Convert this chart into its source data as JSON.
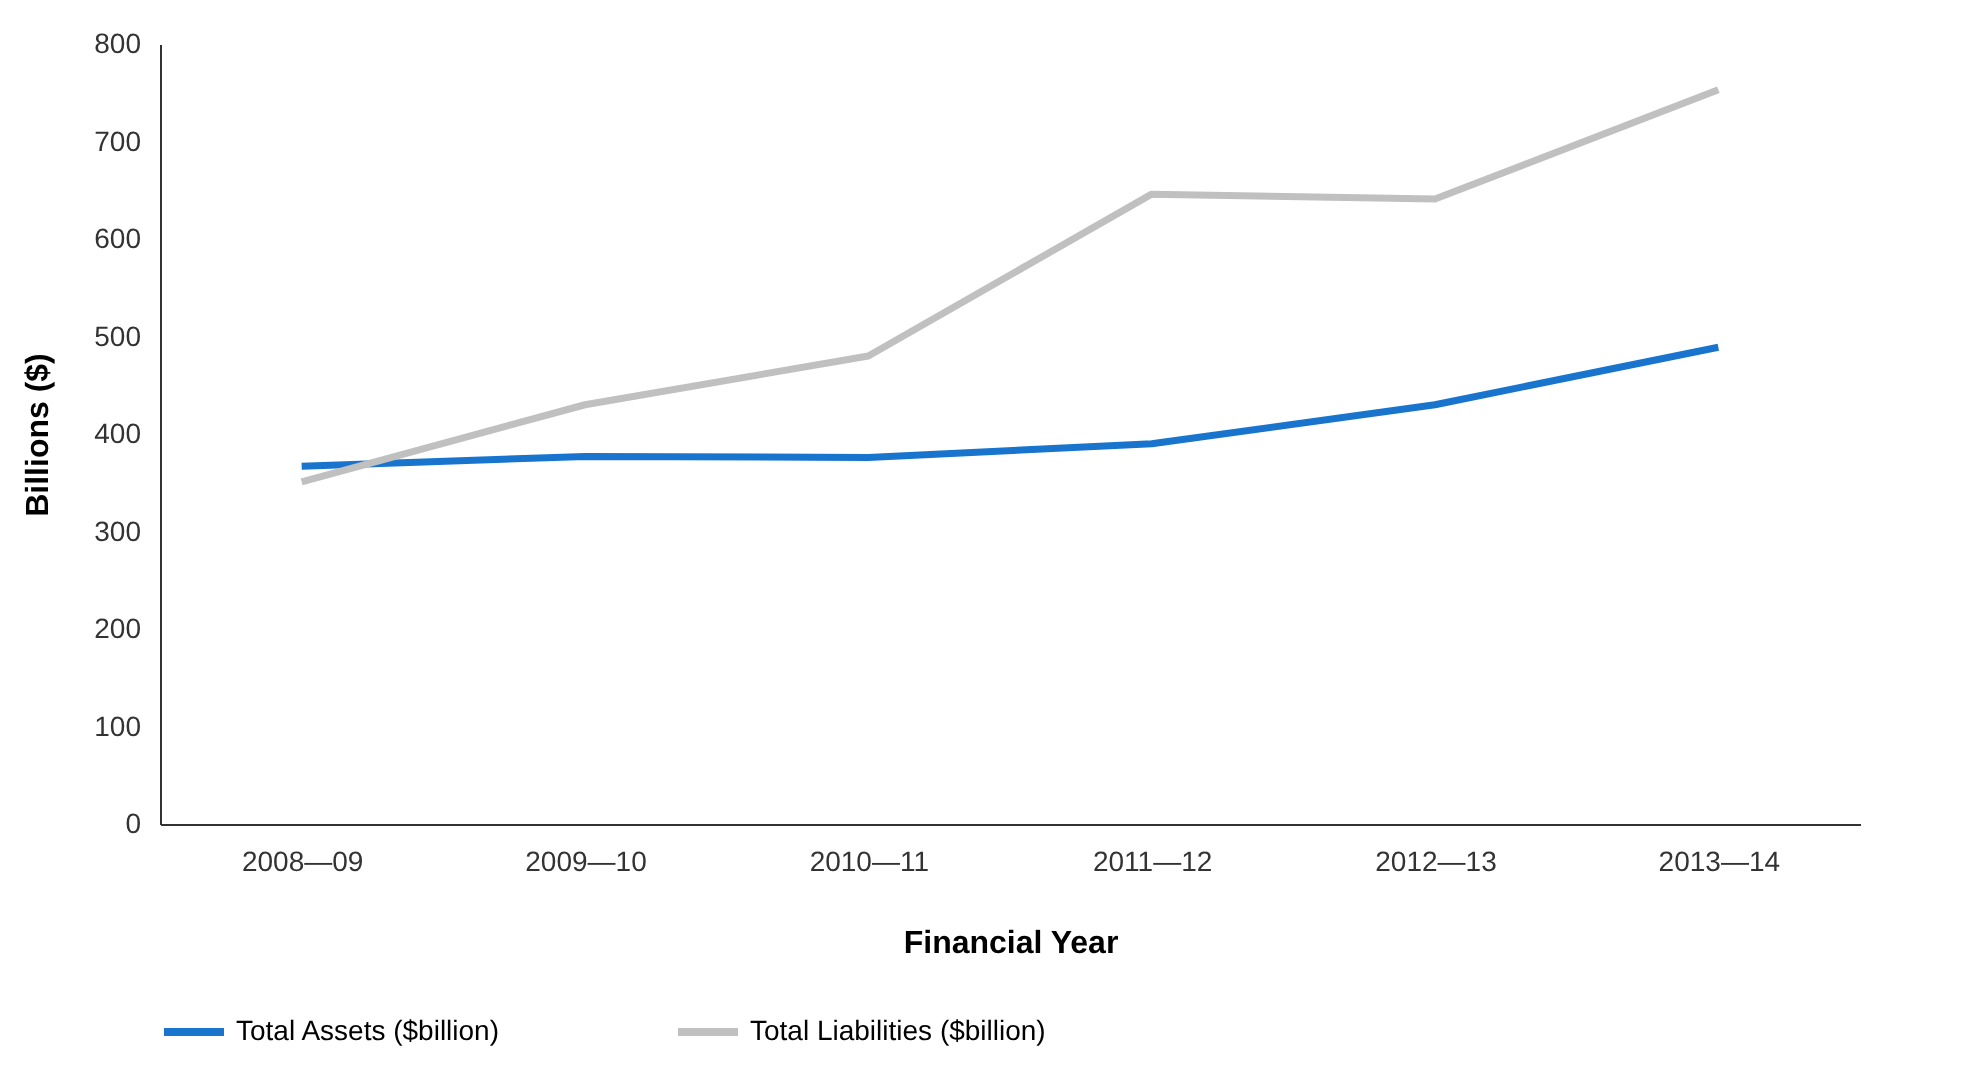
{
  "chart_data": {
    "type": "line",
    "xlabel": "Financial Year",
    "ylabel": "Billions ($)",
    "categories": [
      "2008—09",
      "2009—10",
      "2010—11",
      "2011—12",
      "2012—13",
      "2013—14"
    ],
    "series": [
      {
        "name": "Total Assets ($billion)",
        "color": "#1874cd",
        "values": [
          367,
          377,
          376,
          390,
          430,
          489
        ]
      },
      {
        "name": "Total Liabilities ($billion)",
        "color": "#c0c0c0",
        "values": [
          351,
          430,
          480,
          646,
          641,
          753
        ]
      }
    ],
    "ylim": [
      0,
      800
    ],
    "yticks": [
      0,
      100,
      200,
      300,
      400,
      500,
      600,
      700,
      800
    ],
    "grid": false,
    "legend": "bottom",
    "marker": "none",
    "line_style": "solid"
  }
}
